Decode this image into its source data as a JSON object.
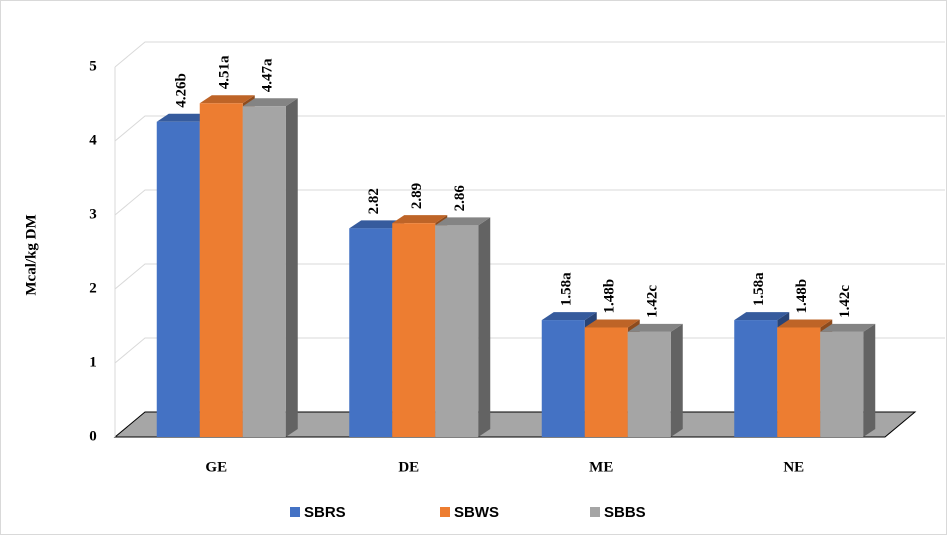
{
  "chart_data": {
    "type": "bar3d",
    "y_label": "Mcal/kg DM",
    "categories": [
      "GE",
      "DE",
      "ME",
      "NE"
    ],
    "series": [
      {
        "name": "SBRS",
        "color": "#4472c4",
        "values": [
          4.26,
          2.82,
          1.58,
          1.58
        ],
        "value_labels": [
          "4.26b",
          "2.82",
          "1.58a",
          "1.58a"
        ]
      },
      {
        "name": "SBWS",
        "color": "#ed7d31",
        "values": [
          4.51,
          2.89,
          1.48,
          1.48
        ],
        "value_labels": [
          "4.51a",
          "2.89",
          "1.48b",
          "1.48b"
        ]
      },
      {
        "name": "SBBS",
        "color": "#a5a5a5",
        "values": [
          4.47,
          2.86,
          1.42,
          1.42
        ],
        "value_labels": [
          "4.47a",
          "2.86",
          "1.42c",
          "1.42c"
        ]
      }
    ],
    "ylim": [
      0,
      5
    ],
    "yticks": [
      0,
      1,
      2,
      3,
      4,
      5
    ],
    "grid": true,
    "legend": "bottom"
  }
}
